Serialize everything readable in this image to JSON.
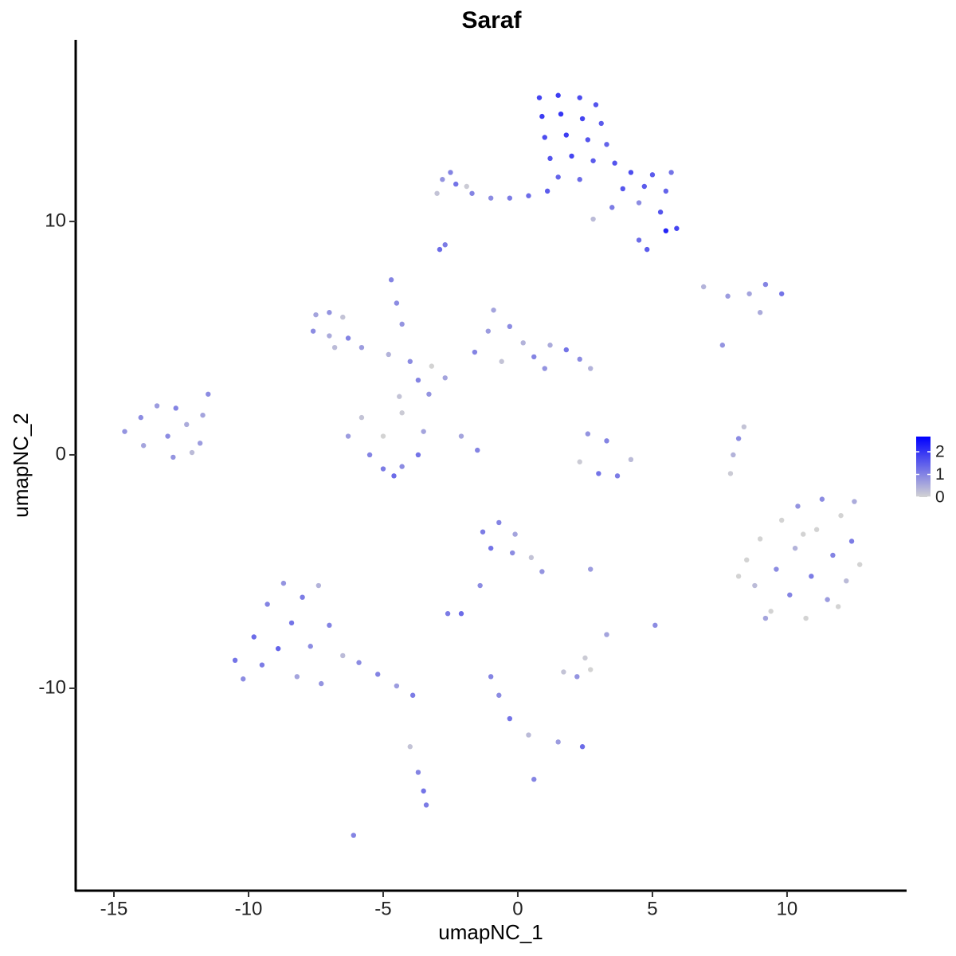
{
  "chart_data": {
    "type": "scatter",
    "title": "Saraf",
    "xlabel": "umapNC_1",
    "ylabel": "umapNC_2",
    "xlim": [
      -16.42,
      14.44
    ],
    "ylim": [
      -18.67,
      17.78
    ],
    "xticks": [
      -15,
      -10,
      -5,
      0,
      5,
      10
    ],
    "yticks": [
      -10,
      0,
      10
    ],
    "color_low": "#d3d3d3",
    "color_high": "#0000ff",
    "colorbar_lim": [
      0,
      2.67
    ],
    "colorbar_ticks": [
      0,
      1,
      2
    ],
    "x": [
      0.8,
      1.5,
      2.3,
      2.9,
      0.9,
      1.6,
      2.4,
      3.1,
      1.0,
      1.8,
      2.6,
      3.3,
      1.2,
      2.0,
      2.8,
      3.6,
      1.5,
      2.3,
      4.2,
      5.0,
      5.7,
      3.9,
      4.7,
      5.5,
      3.5,
      4.5,
      5.3,
      5.9,
      5.5,
      4.5,
      4.8,
      2.8,
      1.1,
      0.4,
      -0.3,
      -1.0,
      -1.7,
      -2.3,
      -2.8,
      -3.0,
      -2.5,
      -1.9,
      -2.9,
      -2.7,
      -7.5,
      -7.0,
      -6.5,
      -7.6,
      -7.0,
      -6.3,
      -6.8,
      -5.8,
      -4.7,
      -4.5,
      -4.3,
      -4.8,
      -4.0,
      -3.2,
      -3.7,
      -2.7,
      -4.4,
      -3.3,
      -1.6,
      -1.1,
      -0.9,
      -0.3,
      0.2,
      0.6,
      1.2,
      1.8,
      2.3,
      2.7,
      -0.6,
      1.0,
      -6.3,
      -5.8,
      -5.5,
      -5.0,
      -4.3,
      -3.7,
      -3.5,
      -4.3,
      -5.0,
      -4.6,
      -2.1,
      -1.5,
      -14.6,
      -14.0,
      -13.4,
      -12.7,
      -13.9,
      -13.0,
      -12.3,
      -12.8,
      -11.8,
      -11.7,
      -11.5,
      -12.1,
      2.6,
      3.3,
      2.3,
      3.0,
      3.7,
      4.2,
      6.9,
      7.8,
      8.6,
      9.2,
      9.8,
      9.0,
      7.6,
      7.9,
      8.0,
      8.2,
      8.4,
      8.5,
      8.8,
      9.0,
      9.4,
      9.6,
      9.8,
      10.1,
      10.3,
      10.4,
      10.7,
      10.9,
      11.1,
      11.3,
      11.5,
      11.7,
      12.0,
      12.2,
      12.4,
      12.7,
      12.5,
      8.2,
      9.2,
      10.6,
      11.9,
      -10.5,
      -10.2,
      -9.8,
      -9.5,
      -9.3,
      -8.9,
      -8.7,
      -8.4,
      -8.2,
      -8.0,
      -7.7,
      -7.4,
      -7.3,
      -7.0,
      -6.5,
      -5.9,
      -5.2,
      -4.5,
      -3.9,
      -4.0,
      -3.7,
      -3.5,
      -3.4,
      -6.1,
      -1.3,
      -0.7,
      -0.1,
      -1.0,
      -0.2,
      0.5,
      0.9,
      -1.4,
      -2.1,
      -2.6,
      1.7,
      2.2,
      2.7,
      2.5,
      3.3,
      5.1,
      2.7,
      -1.0,
      -0.7,
      -0.3,
      0.4,
      1.5,
      2.4,
      0.6
    ],
    "y": [
      15.3,
      15.4,
      15.3,
      15.0,
      14.5,
      14.6,
      14.4,
      14.2,
      13.6,
      13.7,
      13.5,
      13.3,
      12.7,
      12.8,
      12.6,
      12.5,
      11.9,
      11.8,
      12.1,
      12.0,
      12.1,
      11.4,
      11.5,
      11.3,
      10.6,
      10.8,
      10.4,
      9.7,
      9.6,
      9.2,
      8.8,
      10.1,
      11.3,
      11.1,
      11.0,
      11.0,
      11.2,
      11.6,
      11.8,
      11.2,
      12.1,
      11.5,
      8.8,
      9.0,
      6.0,
      6.1,
      5.9,
      5.3,
      5.1,
      5.0,
      4.6,
      4.6,
      7.5,
      6.5,
      5.6,
      4.3,
      4.0,
      3.8,
      3.2,
      3.3,
      2.5,
      2.6,
      4.4,
      5.3,
      6.2,
      5.5,
      4.8,
      4.2,
      4.7,
      4.5,
      4.1,
      3.7,
      4.0,
      3.7,
      0.8,
      1.6,
      0.0,
      -0.6,
      -0.5,
      0.0,
      1.0,
      1.8,
      0.8,
      -0.9,
      0.8,
      0.2,
      1.0,
      1.6,
      2.1,
      2.0,
      0.4,
      0.8,
      1.3,
      -0.1,
      0.5,
      1.7,
      2.6,
      0.1,
      0.9,
      0.6,
      -0.3,
      -0.8,
      -0.9,
      -0.2,
      7.2,
      6.8,
      6.9,
      7.3,
      6.9,
      6.1,
      4.7,
      -0.8,
      0.0,
      0.7,
      1.2,
      -4.5,
      -5.6,
      -3.6,
      -6.7,
      -4.9,
      -2.8,
      -6.0,
      -4.0,
      -2.2,
      -7.0,
      -5.2,
      -3.2,
      -1.9,
      -6.2,
      -4.3,
      -2.6,
      -5.4,
      -3.7,
      -4.7,
      -2.0,
      -5.2,
      -7.0,
      -3.4,
      -6.5,
      -8.8,
      -9.6,
      -7.8,
      -9.0,
      -6.4,
      -8.3,
      -5.5,
      -7.2,
      -9.5,
      -6.1,
      -8.2,
      -5.6,
      -9.8,
      -7.3,
      -8.6,
      -8.9,
      -9.4,
      -9.9,
      -10.3,
      -12.5,
      -13.6,
      -14.4,
      -15.0,
      -16.3,
      -3.3,
      -2.9,
      -3.4,
      -4.0,
      -4.2,
      -4.4,
      -5.0,
      -5.6,
      -6.8,
      -6.8,
      -9.3,
      -9.5,
      -9.2,
      -8.7,
      -7.7,
      -7.3,
      -4.9,
      -9.5,
      -10.3,
      -11.3,
      -12.0,
      -12.3,
      -12.5,
      -13.9
    ],
    "values": [
      1.8,
      1.9,
      1.7,
      1.6,
      1.9,
      2.0,
      1.8,
      1.5,
      1.7,
      1.9,
      1.6,
      1.4,
      1.6,
      1.8,
      1.5,
      1.6,
      1.4,
      1.3,
      1.7,
      1.5,
      1.2,
      1.6,
      1.5,
      1.4,
      1.1,
      0.9,
      1.6,
      1.8,
      2.2,
      1.3,
      1.5,
      0.3,
      1.5,
      1.3,
      1.1,
      0.9,
      1.0,
      1.2,
      0.8,
      0.2,
      1.0,
      0.1,
      1.3,
      1.1,
      0.6,
      0.8,
      0.2,
      0.9,
      0.5,
      1.0,
      0.3,
      0.7,
      1.0,
      0.9,
      0.8,
      0.4,
      0.9,
      0.0,
      1.0,
      0.6,
      0.2,
      0.8,
      1.0,
      0.7,
      0.6,
      0.9,
      0.4,
      1.0,
      0.5,
      1.2,
      0.9,
      0.4,
      0.2,
      0.8,
      0.7,
      0.2,
      1.0,
      1.1,
      0.9,
      1.2,
      0.6,
      0.1,
      0.0,
      1.3,
      0.6,
      1.0,
      0.8,
      0.9,
      0.7,
      1.0,
      0.6,
      0.9,
      0.5,
      0.8,
      0.7,
      0.6,
      0.9,
      0.3,
      0.8,
      1.0,
      0.1,
      1.2,
      1.1,
      0.3,
      0.4,
      0.7,
      0.6,
      1.0,
      1.2,
      0.5,
      0.8,
      0.1,
      0.4,
      0.9,
      0.2,
      0.0,
      0.3,
      0.0,
      0.0,
      0.9,
      0.0,
      1.0,
      0.4,
      0.8,
      0.0,
      1.1,
      0.0,
      0.9,
      0.7,
      1.0,
      0.0,
      0.3,
      1.1,
      0.0,
      0.5,
      0.0,
      0.6,
      0.0,
      0.0,
      1.2,
      0.9,
      1.3,
      1.1,
      1.0,
      1.4,
      0.8,
      1.2,
      0.6,
      1.1,
      0.9,
      0.4,
      0.8,
      1.0,
      0.3,
      0.9,
      1.0,
      0.7,
      1.1,
      0.2,
      1.0,
      1.2,
      1.1,
      1.0,
      1.1,
      1.0,
      0.6,
      1.2,
      0.9,
      0.2,
      0.8,
      0.9,
      1.3,
      1.1,
      0.2,
      0.8,
      0.0,
      0.1,
      0.6,
      0.9,
      0.7,
      1.0,
      0.9,
      1.2,
      0.3,
      0.7,
      1.3,
      1.0
    ]
  }
}
